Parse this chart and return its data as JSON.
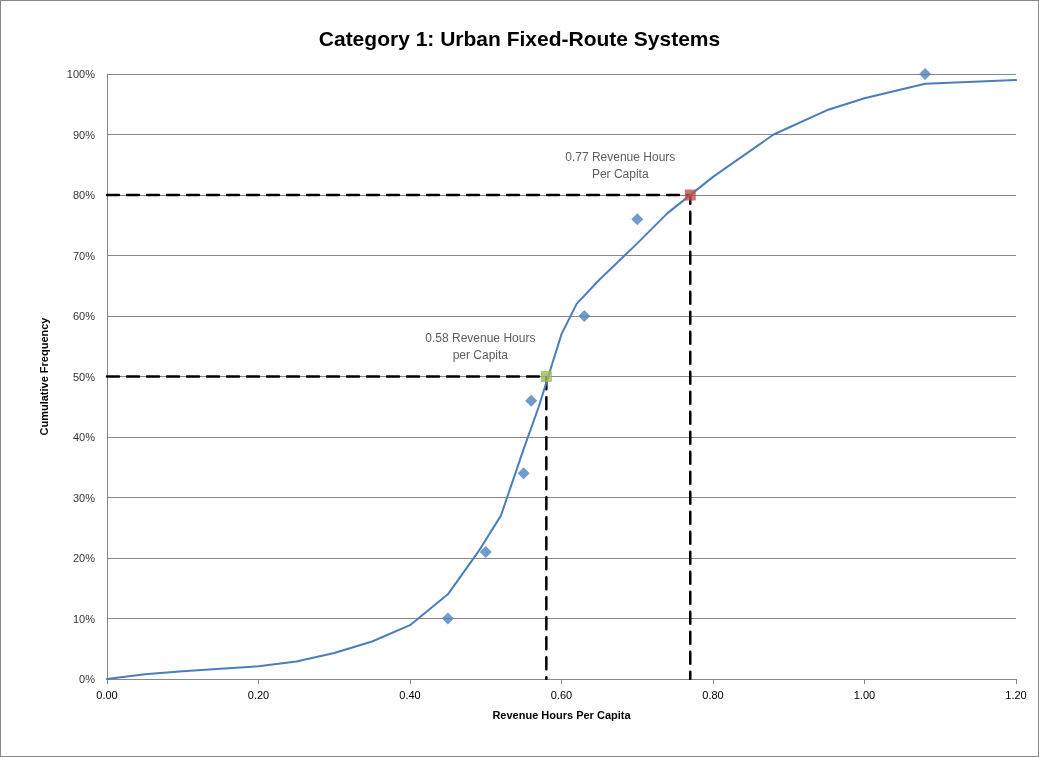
{
  "chart_data": {
    "type": "scatter",
    "title": "Category 1: Urban Fixed-Route Systems",
    "xlabel": "Revenue Hours Per Capita",
    "ylabel": "Cumulative Frequency",
    "xlim": [
      0,
      1.2
    ],
    "xticks": [
      {
        "value": 0,
        "label": "0.00"
      },
      {
        "value": 0.2,
        "label": "0.20"
      },
      {
        "value": 0.4,
        "label": "0.40"
      },
      {
        "value": 0.6,
        "label": "0.60"
      },
      {
        "value": 0.8,
        "label": "0.80"
      },
      {
        "value": 1.0,
        "label": "1.00"
      },
      {
        "value": 1.2,
        "label": "1.20"
      }
    ],
    "ylim": [
      0,
      100
    ],
    "yticks": [
      {
        "value": 0,
        "label": "0%"
      },
      {
        "value": 10,
        "label": "10%"
      },
      {
        "value": 20,
        "label": "20%"
      },
      {
        "value": 30,
        "label": "30%"
      },
      {
        "value": 40,
        "label": "40%"
      },
      {
        "value": 50,
        "label": "50%"
      },
      {
        "value": 60,
        "label": "60%"
      },
      {
        "value": 70,
        "label": "70%"
      },
      {
        "value": 80,
        "label": "80%"
      },
      {
        "value": 90,
        "label": "90%"
      },
      {
        "value": 100,
        "label": "100%"
      }
    ],
    "grid": "y",
    "series": [
      {
        "type": "line",
        "color": "#000000",
        "line_style": "dashed",
        "marker": "none",
        "x": [
          0,
          0.58,
          0.58
        ],
        "values": [
          50,
          50,
          0
        ]
      },
      {
        "type": "line",
        "color": "#000000",
        "line_style": "dashed",
        "marker": "none",
        "x": [
          0,
          0.77,
          0.77
        ],
        "values": [
          80,
          80,
          0
        ]
      },
      {
        "type": "line",
        "color": "#4a7ebb",
        "line_style": "solid",
        "marker": "none",
        "x": [
          0,
          0.05,
          0.1,
          0.15,
          0.2,
          0.25,
          0.3,
          0.35,
          0.4,
          0.45,
          0.49,
          0.52,
          0.55,
          0.57,
          0.6,
          0.62,
          0.65,
          0.7,
          0.74,
          0.8,
          0.88,
          0.95,
          1.0,
          1.08,
          1.2
        ],
        "values": [
          0,
          0.8,
          1.3,
          1.7,
          2.1,
          2.9,
          4.3,
          6.2,
          8.9,
          14,
          21,
          27,
          38,
          45,
          57,
          62,
          66,
          72,
          77,
          83,
          90,
          94,
          96,
          98.4,
          99
        ]
      },
      {
        "color": "#4f81bd",
        "marker": "diamond",
        "x": [
          0.45,
          0.5,
          0.55,
          0.56,
          0.63,
          0.7,
          1.08
        ],
        "values": [
          10,
          21,
          34,
          46,
          60,
          76,
          100
        ]
      },
      {
        "color": "#9bbb59",
        "marker": "square",
        "x": [
          0.58
        ],
        "values": [
          50
        ]
      },
      {
        "color": "#c0504d",
        "marker": "square",
        "x": [
          0.77
        ],
        "values": [
          80
        ]
      }
    ],
    "annotations": [
      {
        "text": "0.58 Revenue Hours\nper Capita",
        "x": 0.58,
        "y": 50
      },
      {
        "text": "0.77 Revenue Hours\nPer Capita",
        "x": 0.77,
        "y": 80
      }
    ]
  }
}
